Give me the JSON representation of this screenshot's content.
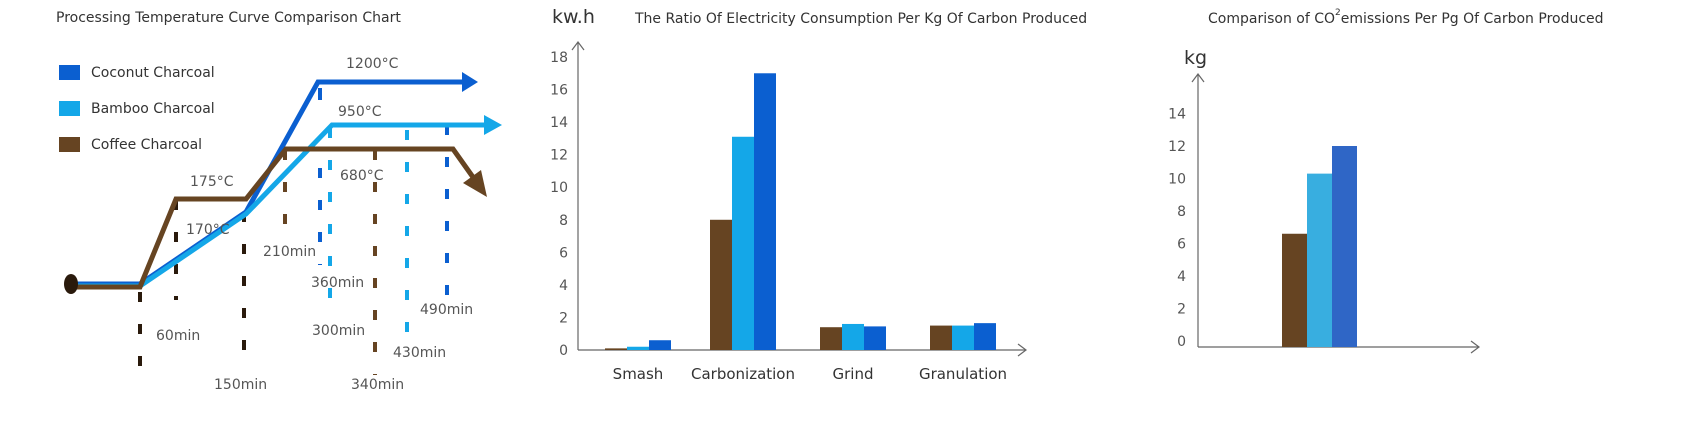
{
  "colors": {
    "coconut": "#0b5fd0",
    "bamboo": "#14a7e8",
    "coffee": "#664422",
    "chart3_coconut": "#2f66c6",
    "chart3_bamboo": "#38aee0"
  },
  "chart_data": [
    {
      "type": "line",
      "title": "Processing Temperature Curve Comparison Chart",
      "legend": [
        "Coconut Charcoal",
        "Bamboo Charcoal",
        "Coffee Charcoal"
      ],
      "series": [
        {
          "name": "Coconut Charcoal",
          "x": [
            0,
            60,
            150,
            300,
            490
          ],
          "y": [
            0,
            0,
            170,
            1200,
            1200
          ]
        },
        {
          "name": "Bamboo Charcoal",
          "x": [
            0,
            60,
            150,
            300,
            490
          ],
          "y": [
            0,
            0,
            170,
            950,
            950
          ]
        },
        {
          "name": "Coffee Charcoal",
          "x": [
            0,
            60,
            150,
            210,
            430,
            490
          ],
          "y": [
            0,
            0,
            175,
            680,
            680,
            500
          ]
        }
      ],
      "temperature_labels": [
        "1200°C",
        "950°C",
        "680°C",
        "175°C",
        "170°C"
      ],
      "time_labels": [
        "60min",
        "150min",
        "210min",
        "300min",
        "340min",
        "360min",
        "430min",
        "490min"
      ]
    },
    {
      "type": "bar",
      "title": "The Ratio Of Electricity Consumption Per Kg Of Carbon Produced",
      "ylabel": "kw.h",
      "categories": [
        "Smash",
        "Carbonization",
        "Grind",
        "Granulation"
      ],
      "series": [
        {
          "values": [
            0.1,
            8,
            1.4,
            1.5
          ]
        },
        {
          "values": [
            0.2,
            13.1,
            1.6,
            1.5
          ]
        },
        {
          "values": [
            0.6,
            17,
            1.45,
            1.65
          ]
        }
      ],
      "ylim": [
        0,
        18
      ],
      "yticks": [
        "0",
        "2",
        "4",
        "6",
        "8",
        "10",
        "12",
        "14",
        "16",
        "18"
      ]
    },
    {
      "type": "bar",
      "title_prefix": "Comparison of CO",
      "title_sup": "2",
      "title_suffix": "emissions Per Pg Of Carbon Produced",
      "ylabel": "kg",
      "series": [
        {
          "values": [
            6.6
          ]
        },
        {
          "values": [
            10.3
          ]
        },
        {
          "values": [
            12
          ]
        }
      ],
      "ylim": [
        0,
        16
      ],
      "yticks": [
        "0",
        "2",
        "4",
        "6",
        "8",
        "10",
        "12",
        "14"
      ]
    }
  ]
}
